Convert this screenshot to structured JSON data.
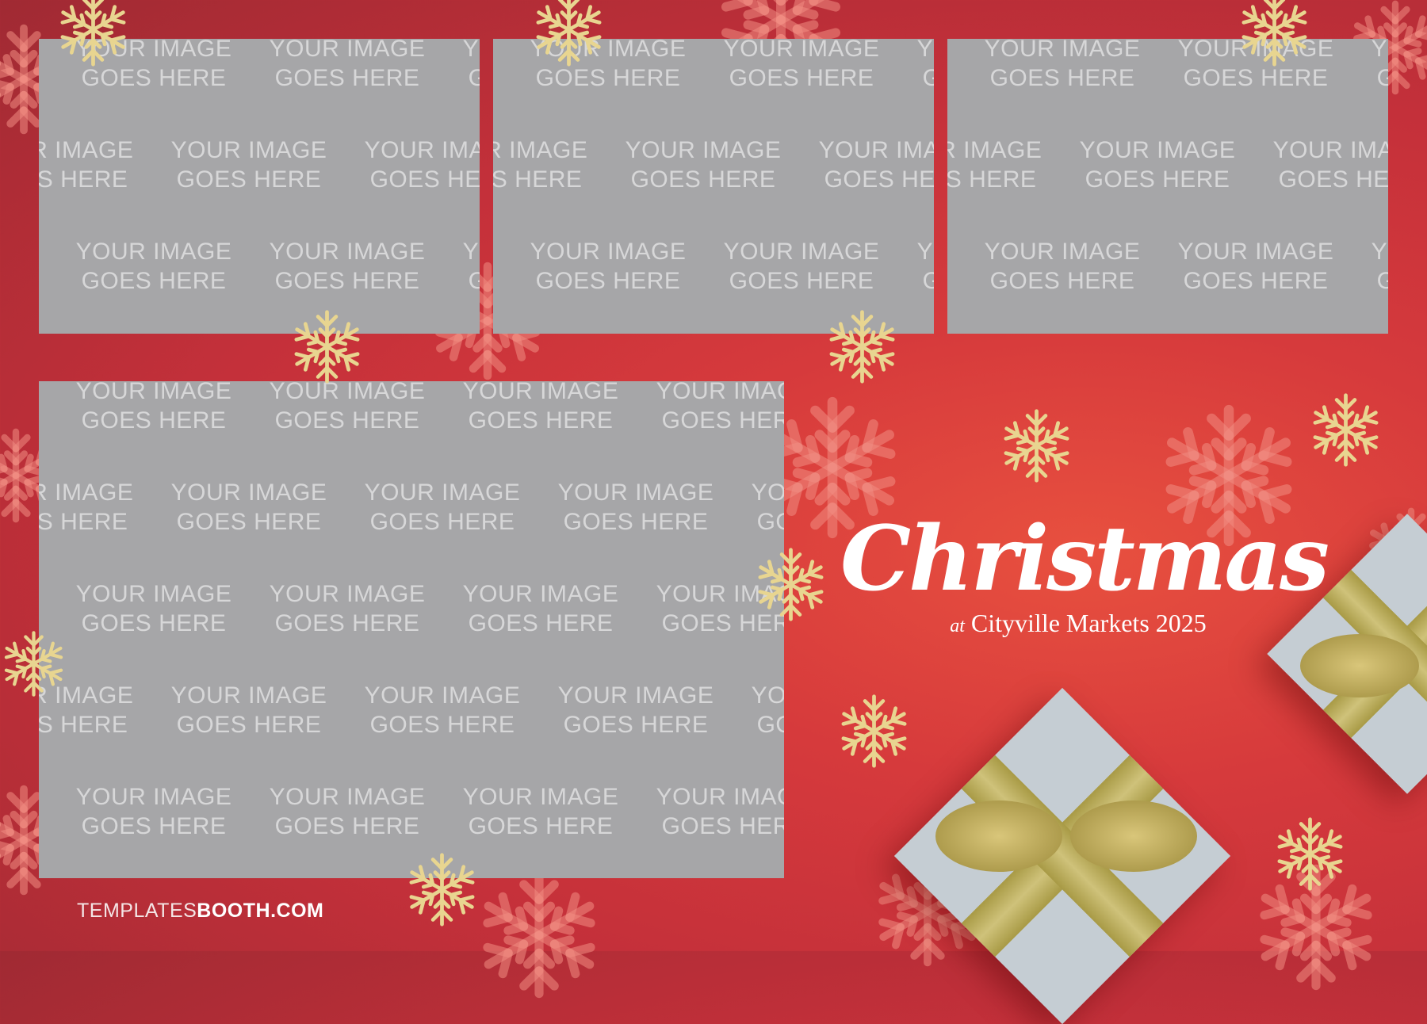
{
  "placeholder": {
    "line1": "YOUR IMAGE",
    "line2": "GOES HERE"
  },
  "title": "Christmas",
  "subtitle": {
    "prefix": "at",
    "text": "Cityville Markets 2025"
  },
  "footer": {
    "light": "TEMPLATES",
    "bold": "BOOTH.COM"
  },
  "colors": {
    "background": "#d63a3c",
    "slot": "#a6a6a8",
    "gold": "#d9c67a",
    "gift": "#c5cdd3"
  },
  "icons": {
    "snowflake": "snowflake-icon",
    "gift": "gift-box-icon"
  }
}
